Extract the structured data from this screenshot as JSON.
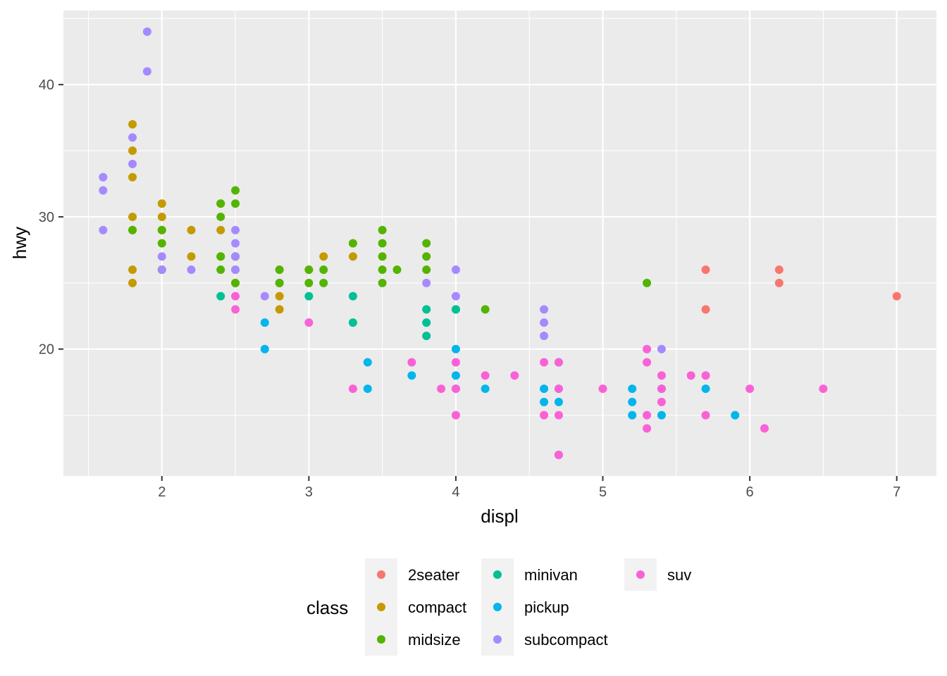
{
  "chart_data": {
    "type": "scatter",
    "xlabel": "displ",
    "ylabel": "hwy",
    "xlim": [
      1.33,
      7.27
    ],
    "ylim": [
      10.4,
      45.6
    ],
    "x_ticks": [
      2,
      3,
      4,
      5,
      6,
      7
    ],
    "x_tick_labels": [
      "2",
      "3",
      "4",
      "5",
      "6",
      "7"
    ],
    "y_ticks": [
      20,
      30,
      40
    ],
    "y_tick_labels": [
      "20",
      "30",
      "40"
    ],
    "grid": true,
    "background": "#EBEBEB",
    "legend": {
      "title": "class",
      "position": "bottom"
    },
    "series": [
      {
        "name": "2seater",
        "color": "#F8766D",
        "points": [
          [
            5.7,
            26
          ],
          [
            5.7,
            23
          ],
          [
            6.2,
            26
          ],
          [
            6.2,
            25
          ],
          [
            7.0,
            24
          ]
        ]
      },
      {
        "name": "compact",
        "color": "#C49A00",
        "points": [
          [
            1.8,
            37
          ],
          [
            1.8,
            35
          ],
          [
            1.8,
            33
          ],
          [
            1.8,
            30
          ],
          [
            1.8,
            29
          ],
          [
            1.8,
            26
          ],
          [
            1.8,
            25
          ],
          [
            2.0,
            31
          ],
          [
            2.0,
            30
          ],
          [
            2.0,
            29
          ],
          [
            2.0,
            26
          ],
          [
            2.2,
            29
          ],
          [
            2.2,
            27
          ],
          [
            2.4,
            31
          ],
          [
            2.4,
            29
          ],
          [
            2.4,
            27
          ],
          [
            2.5,
            27
          ],
          [
            2.5,
            25
          ],
          [
            2.8,
            26
          ],
          [
            2.8,
            25
          ],
          [
            2.8,
            24
          ],
          [
            2.8,
            23
          ],
          [
            3.0,
            26
          ],
          [
            3.1,
            27
          ],
          [
            3.3,
            27
          ]
        ]
      },
      {
        "name": "midsize",
        "color": "#53B400",
        "points": [
          [
            1.8,
            29
          ],
          [
            2.0,
            29
          ],
          [
            2.0,
            28
          ],
          [
            2.0,
            26
          ],
          [
            2.4,
            31
          ],
          [
            2.4,
            30
          ],
          [
            2.4,
            27
          ],
          [
            2.4,
            26
          ],
          [
            2.5,
            32
          ],
          [
            2.5,
            31
          ],
          [
            2.5,
            27
          ],
          [
            2.5,
            26
          ],
          [
            2.5,
            25
          ],
          [
            2.8,
            26
          ],
          [
            2.8,
            25
          ],
          [
            3.0,
            26
          ],
          [
            3.0,
            25
          ],
          [
            3.1,
            26
          ],
          [
            3.1,
            25
          ],
          [
            3.3,
            28
          ],
          [
            3.5,
            29
          ],
          [
            3.5,
            28
          ],
          [
            3.5,
            27
          ],
          [
            3.5,
            26
          ],
          [
            3.5,
            25
          ],
          [
            3.6,
            26
          ],
          [
            3.8,
            28
          ],
          [
            3.8,
            27
          ],
          [
            3.8,
            26
          ],
          [
            4.0,
            23
          ],
          [
            4.2,
            23
          ],
          [
            5.3,
            25
          ]
        ]
      },
      {
        "name": "minivan",
        "color": "#00C094",
        "points": [
          [
            2.4,
            24
          ],
          [
            3.0,
            24
          ],
          [
            3.3,
            24
          ],
          [
            3.3,
            22
          ],
          [
            3.8,
            23
          ],
          [
            3.8,
            22
          ],
          [
            3.8,
            21
          ],
          [
            4.0,
            23
          ]
        ]
      },
      {
        "name": "pickup",
        "color": "#00B6EB",
        "points": [
          [
            2.7,
            22
          ],
          [
            2.7,
            20
          ],
          [
            3.4,
            19
          ],
          [
            3.4,
            17
          ],
          [
            3.7,
            18
          ],
          [
            4.0,
            20
          ],
          [
            4.0,
            18
          ],
          [
            4.0,
            17
          ],
          [
            4.2,
            17
          ],
          [
            4.6,
            17
          ],
          [
            4.6,
            16
          ],
          [
            4.7,
            19
          ],
          [
            4.7,
            17
          ],
          [
            4.7,
            16
          ],
          [
            4.7,
            12
          ],
          [
            5.2,
            17
          ],
          [
            5.2,
            16
          ],
          [
            5.2,
            15
          ],
          [
            5.4,
            17
          ],
          [
            5.4,
            15
          ],
          [
            5.7,
            17
          ],
          [
            5.9,
            15
          ]
        ]
      },
      {
        "name": "subcompact",
        "color": "#A58AFF",
        "points": [
          [
            1.6,
            33
          ],
          [
            1.6,
            32
          ],
          [
            1.6,
            29
          ],
          [
            1.8,
            36
          ],
          [
            1.8,
            34
          ],
          [
            1.9,
            44
          ],
          [
            1.9,
            41
          ],
          [
            2.0,
            27
          ],
          [
            2.0,
            26
          ],
          [
            2.2,
            26
          ],
          [
            2.5,
            29
          ],
          [
            2.5,
            28
          ],
          [
            2.5,
            27
          ],
          [
            2.5,
            26
          ],
          [
            2.7,
            24
          ],
          [
            3.8,
            25
          ],
          [
            4.0,
            26
          ],
          [
            4.0,
            24
          ],
          [
            4.6,
            23
          ],
          [
            4.6,
            22
          ],
          [
            4.6,
            21
          ],
          [
            5.4,
            20
          ]
        ]
      },
      {
        "name": "suv",
        "color": "#FB61D7",
        "points": [
          [
            2.5,
            24
          ],
          [
            2.5,
            23
          ],
          [
            3.0,
            22
          ],
          [
            3.3,
            17
          ],
          [
            3.7,
            19
          ],
          [
            3.9,
            17
          ],
          [
            4.0,
            19
          ],
          [
            4.0,
            17
          ],
          [
            4.0,
            15
          ],
          [
            4.2,
            18
          ],
          [
            4.4,
            18
          ],
          [
            4.6,
            19
          ],
          [
            4.6,
            15
          ],
          [
            4.7,
            19
          ],
          [
            4.7,
            17
          ],
          [
            4.7,
            15
          ],
          [
            4.7,
            12
          ],
          [
            5.0,
            17
          ],
          [
            5.3,
            20
          ],
          [
            5.3,
            19
          ],
          [
            5.3,
            15
          ],
          [
            5.3,
            14
          ],
          [
            5.4,
            18
          ],
          [
            5.4,
            17
          ],
          [
            5.4,
            16
          ],
          [
            5.6,
            18
          ],
          [
            5.7,
            18
          ],
          [
            5.7,
            15
          ],
          [
            6.0,
            17
          ],
          [
            6.1,
            14
          ],
          [
            6.5,
            17
          ]
        ]
      }
    ]
  }
}
